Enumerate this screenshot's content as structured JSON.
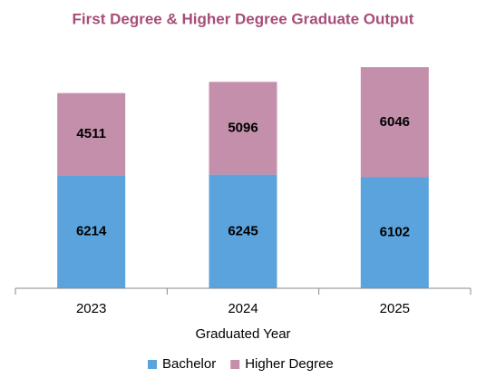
{
  "chart_data": {
    "type": "stacked_bar",
    "title": "First Degree & Higher Degree Graduate Output",
    "x_label": "Graduated Year",
    "categories": [
      "2023",
      "2024",
      "2025"
    ],
    "series": [
      {
        "name": "Bachelor",
        "color": "#5ba3dc",
        "values": [
          6214,
          6245,
          6102
        ]
      },
      {
        "name": "Higher Degree",
        "color": "#c48fab",
        "values": [
          4511,
          5096,
          6046
        ]
      }
    ],
    "ylim": [
      0,
      13000
    ],
    "legend": "bottom"
  }
}
